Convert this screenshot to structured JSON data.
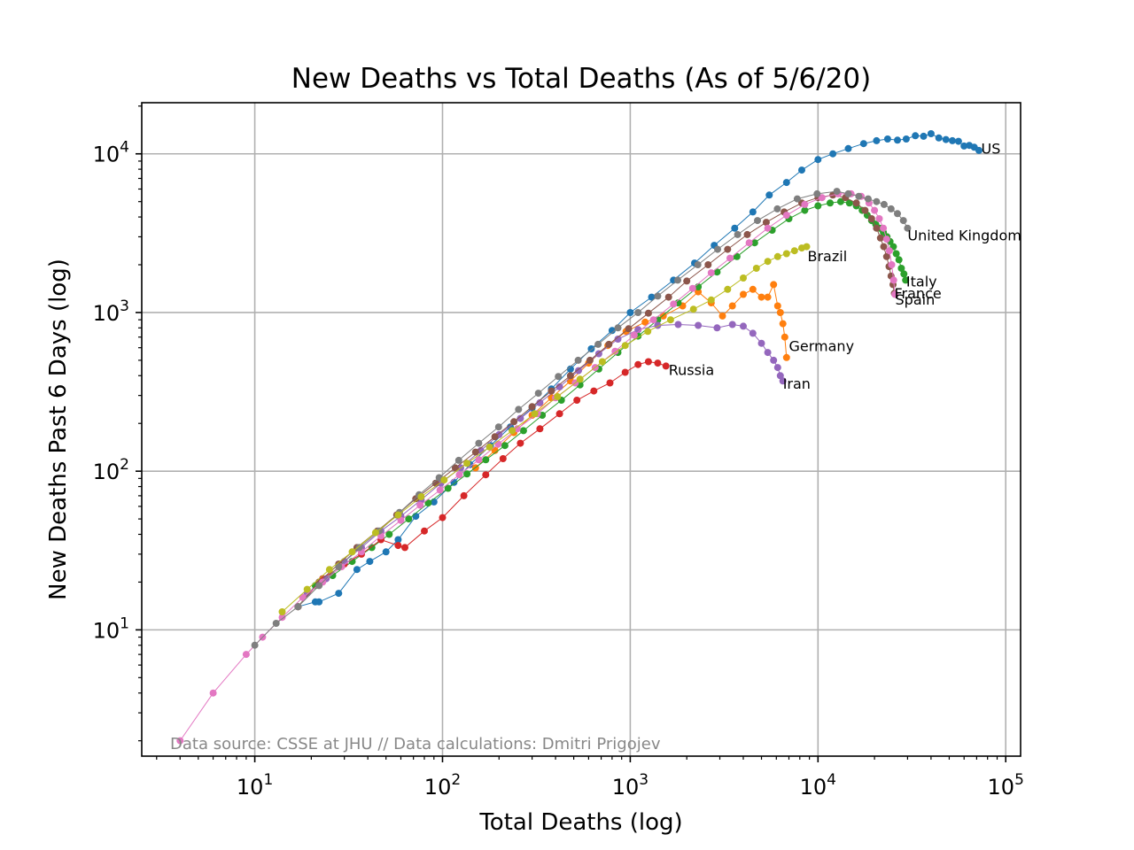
{
  "chart_data": {
    "type": "line",
    "title": "New Deaths vs Total Deaths (As of 5/6/20)",
    "xlabel": "Total Deaths (log)",
    "ylabel": "New Deaths Past 6 Days (log)",
    "xscale": "log",
    "yscale": "log",
    "xlim": [
      2.5,
      120000
    ],
    "ylim": [
      1.6,
      21000
    ],
    "grid": true,
    "x_tick_labels": [
      {
        "value": 10,
        "base": "10",
        "exp": "1"
      },
      {
        "value": 100,
        "base": "10",
        "exp": "2"
      },
      {
        "value": 1000,
        "base": "10",
        "exp": "3"
      },
      {
        "value": 10000,
        "base": "10",
        "exp": "4"
      },
      {
        "value": 100000,
        "base": "10",
        "exp": "5"
      }
    ],
    "y_tick_labels": [
      {
        "value": 10,
        "base": "10",
        "exp": "1"
      },
      {
        "value": 100,
        "base": "10",
        "exp": "2"
      },
      {
        "value": 1000,
        "base": "10",
        "exp": "3"
      },
      {
        "value": 10000,
        "base": "10",
        "exp": "4"
      }
    ],
    "source_note": "Data source: CSSE at JHU // Data calculations: Dmitri Prigojev",
    "series": [
      {
        "name": "US",
        "color": "#1f77b4",
        "x": [
          17,
          21,
          22,
          28,
          35,
          41,
          50,
          58,
          72,
          90,
          115,
          140,
          180,
          230,
          300,
          380,
          480,
          620,
          800,
          1000,
          1300,
          1700,
          2200,
          2800,
          3600,
          4500,
          5500,
          6800,
          8200,
          10000,
          12000,
          14500,
          17500,
          20500,
          23500,
          26500,
          29500,
          33000,
          36500,
          40000,
          44000,
          48000,
          52000,
          56000,
          60000,
          64000,
          68000,
          72000
        ],
        "y": [
          14,
          15,
          15,
          17,
          24,
          27,
          31,
          37,
          52,
          64,
          85,
          110,
          145,
          190,
          250,
          330,
          440,
          590,
          770,
          1000,
          1250,
          1600,
          2050,
          2650,
          3400,
          4300,
          5500,
          6600,
          7900,
          9200,
          10000,
          10800,
          11600,
          12100,
          12400,
          12200,
          12400,
          13000,
          12900,
          13400,
          12600,
          12300,
          12100,
          12000,
          11200,
          11300,
          11000,
          10500
        ]
      },
      {
        "name": "Germany",
        "color": "#ff7f0e",
        "x": [
          150,
          190,
          240,
          300,
          380,
          480,
          600,
          760,
          950,
          1200,
          1500,
          1900,
          2300,
          2700,
          3100,
          3500,
          4000,
          4500,
          5000,
          5400,
          5800,
          6100,
          6300,
          6500,
          6650,
          6800
        ],
        "y": [
          105,
          135,
          175,
          225,
          290,
          370,
          480,
          620,
          760,
          870,
          950,
          1100,
          1350,
          1150,
          950,
          1100,
          1300,
          1400,
          1250,
          1250,
          1500,
          1100,
          1000,
          850,
          700,
          520
        ]
      },
      {
        "name": "Italy",
        "color": "#2ca02c",
        "x": [
          17,
          21,
          26,
          33,
          42,
          52,
          66,
          84,
          107,
          135,
          170,
          215,
          270,
          340,
          430,
          540,
          680,
          860,
          1100,
          1400,
          1800,
          2300,
          2900,
          3700,
          4600,
          5700,
          7000,
          8500,
          10000,
          11600,
          13200,
          14700,
          16000,
          17200,
          18300,
          19300,
          20300,
          21300,
          22300,
          23300,
          24200,
          25200,
          26100,
          27000,
          27800,
          28700,
          29300
        ],
        "y": [
          14,
          19,
          22,
          27,
          33,
          40,
          50,
          63,
          78,
          96,
          118,
          145,
          180,
          225,
          280,
          350,
          440,
          560,
          710,
          900,
          1150,
          1450,
          1800,
          2250,
          2750,
          3300,
          3900,
          4400,
          4700,
          4900,
          5000,
          4900,
          4700,
          4400,
          4100,
          3800,
          3600,
          3400,
          3200,
          3000,
          2800,
          2600,
          2350,
          2150,
          1900,
          1750,
          1600
        ]
      },
      {
        "name": "Russia",
        "color": "#d62728",
        "x": [
          17,
          23,
          30,
          37,
          47,
          58,
          63,
          80,
          100,
          130,
          170,
          210,
          260,
          330,
          420,
          520,
          640,
          780,
          940,
          1100,
          1250,
          1400,
          1550
        ],
        "y": [
          14,
          21,
          26,
          30,
          37,
          34,
          33,
          42,
          51,
          70,
          95,
          120,
          150,
          185,
          230,
          280,
          320,
          360,
          420,
          470,
          490,
          480,
          460
        ]
      },
      {
        "name": "Iran",
        "color": "#9467bd",
        "x": [
          19,
          24,
          30,
          37,
          47,
          60,
          77,
          98,
          125,
          160,
          200,
          260,
          330,
          420,
          530,
          680,
          860,
          1100,
          1400,
          1800,
          2300,
          2900,
          3500,
          4000,
          4500,
          5000,
          5400,
          5800,
          6100,
          6300,
          6500
        ],
        "y": [
          17,
          21,
          27,
          33,
          42,
          52,
          66,
          84,
          105,
          135,
          170,
          215,
          270,
          340,
          430,
          550,
          680,
          780,
          830,
          840,
          830,
          800,
          840,
          820,
          740,
          640,
          560,
          500,
          450,
          400,
          370
        ]
      },
      {
        "name": "France",
        "color": "#8c564b",
        "x": [
          17,
          22,
          28,
          35,
          45,
          57,
          72,
          92,
          117,
          150,
          190,
          240,
          300,
          380,
          480,
          610,
          770,
          980,
          1250,
          1600,
          2000,
          2600,
          3300,
          4200,
          5300,
          6600,
          8200,
          10000,
          12000,
          14000,
          16000,
          17800,
          19300,
          20500,
          21500,
          22400,
          23200,
          23900,
          24500,
          25100,
          25500
        ],
        "y": [
          14,
          20,
          26,
          33,
          42,
          53,
          67,
          84,
          105,
          132,
          165,
          205,
          255,
          320,
          400,
          500,
          630,
          790,
          990,
          1250,
          1580,
          2000,
          2500,
          3100,
          3700,
          4300,
          4900,
          5300,
          5500,
          5300,
          4900,
          4400,
          3900,
          3400,
          2950,
          2600,
          2250,
          1950,
          1700,
          1500,
          1320
        ]
      },
      {
        "name": "Spain",
        "color": "#e377c2",
        "x": [
          4,
          6,
          9,
          11,
          14,
          18,
          23,
          29,
          37,
          47,
          60,
          76,
          97,
          123,
          156,
          198,
          250,
          320,
          400,
          510,
          650,
          830,
          1050,
          1330,
          1700,
          2150,
          2700,
          3400,
          4300,
          5400,
          6800,
          8500,
          10500,
          12800,
          15000,
          17000,
          18700,
          20000,
          21200,
          22300,
          23200,
          24000,
          24700,
          25300,
          25700
        ],
        "y": [
          2,
          4,
          7,
          9,
          12,
          16,
          20,
          25,
          31,
          39,
          49,
          61,
          76,
          95,
          118,
          148,
          185,
          230,
          290,
          360,
          450,
          570,
          720,
          900,
          1130,
          1420,
          1780,
          2200,
          2750,
          3400,
          4100,
          4800,
          5300,
          5600,
          5600,
          5400,
          4900,
          4400,
          3900,
          3400,
          2900,
          2450,
          2000,
          1600,
          1300
        ]
      },
      {
        "name": "United Kingdom",
        "color": "#7f7f7f",
        "x": [
          10,
          13,
          17,
          22,
          28,
          36,
          46,
          59,
          75,
          96,
          122,
          156,
          199,
          254,
          324,
          414,
          528,
          674,
          860,
          1100,
          1400,
          1790,
          2290,
          2920,
          3730,
          4760,
          6070,
          7750,
          9890,
          12600,
          14500,
          16500,
          18500,
          20500,
          22500,
          24500,
          26500,
          28500,
          30000
        ],
        "y": [
          8,
          11,
          14,
          19,
          25,
          33,
          42,
          55,
          71,
          91,
          117,
          150,
          190,
          245,
          310,
          395,
          500,
          630,
          800,
          1000,
          1270,
          1600,
          2000,
          2500,
          3100,
          3800,
          4500,
          5200,
          5600,
          5800,
          5600,
          5400,
          5200,
          5000,
          4800,
          4500,
          4200,
          3800,
          3400
        ]
      },
      {
        "name": "Brazil",
        "color": "#bcbd22",
        "x": [
          14,
          19,
          25,
          33,
          44,
          58,
          77,
          102,
          135,
          178,
          235,
          310,
          410,
          540,
          710,
          940,
          1240,
          1640,
          2170,
          2700,
          3300,
          4000,
          4700,
          5400,
          6100,
          6800,
          7500,
          8200,
          8700
        ],
        "y": [
          13,
          18,
          24,
          31,
          41,
          53,
          69,
          88,
          112,
          142,
          180,
          230,
          295,
          380,
          490,
          620,
          760,
          900,
          1050,
          1200,
          1400,
          1650,
          1900,
          2100,
          2250,
          2350,
          2450,
          2550,
          2600
        ]
      }
    ],
    "labels": [
      {
        "text": "US",
        "x": 74000,
        "y": 10000
      },
      {
        "text": "United Kingdom",
        "x": 30000,
        "y": 2850
      },
      {
        "text": "Brazil",
        "x": 8800,
        "y": 2100
      },
      {
        "text": "Italy",
        "x": 29500,
        "y": 1460
      },
      {
        "text": "France",
        "x": 25500,
        "y": 1230
      },
      {
        "text": "Spain",
        "x": 25800,
        "y": 1120
      },
      {
        "text": "Germany",
        "x": 7000,
        "y": 570
      },
      {
        "text": "Russia",
        "x": 1600,
        "y": 405
      },
      {
        "text": "Iran",
        "x": 6500,
        "y": 330
      }
    ]
  }
}
